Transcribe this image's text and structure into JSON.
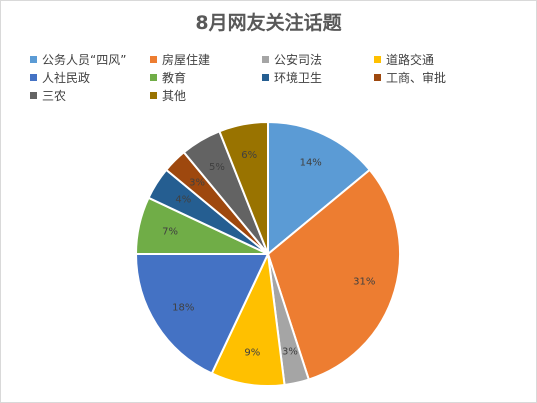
{
  "chart_data": {
    "type": "pie",
    "title": "8月网友关注话题",
    "legend_position": "top",
    "categories": [
      "公务人员“四风”",
      "房屋住建",
      "公安司法",
      "道路交通",
      "人社民政",
      "教育",
      "环境卫生",
      "工商、审批",
      "三农",
      "其他"
    ],
    "values": [
      14,
      31,
      3,
      9,
      18,
      7,
      4,
      3,
      5,
      6
    ],
    "value_labels": [
      "14%",
      "31%",
      "3%",
      "9%",
      "18%",
      "7%",
      "4%",
      "3%",
      "5%",
      "6%"
    ],
    "colors": [
      "#5B9BD5",
      "#ED7D31",
      "#A5A5A5",
      "#FFC000",
      "#4472C4",
      "#70AD47",
      "#255E91",
      "#9E480E",
      "#636363",
      "#997300"
    ]
  }
}
